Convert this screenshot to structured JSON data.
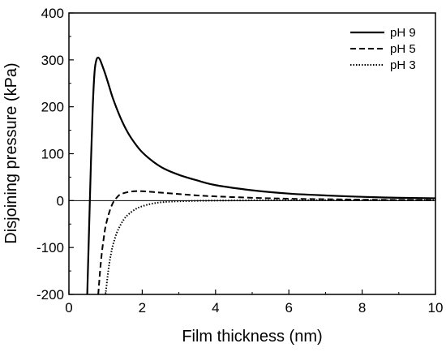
{
  "chart_data": {
    "type": "line",
    "title": "",
    "xlabel": "Film thickness (nm)",
    "ylabel": "Disjoining pressure (kPa)",
    "xlim": [
      0,
      10
    ],
    "ylim": [
      -200,
      400
    ],
    "xticks": [
      0,
      2,
      4,
      6,
      8,
      10
    ],
    "yticks": [
      -200,
      -100,
      0,
      100,
      200,
      300,
      400
    ],
    "xtick_labels": [
      "0",
      "2",
      "4",
      "6",
      "8",
      "10"
    ],
    "ytick_labels": [
      "-200",
      "-100",
      "0",
      "100",
      "200",
      "300",
      "400"
    ],
    "grid": false,
    "zero_line": true,
    "legend_position": "top-right",
    "series": [
      {
        "name": "pH 9",
        "style": "solid",
        "color": "#000000",
        "x": [
          0.5,
          0.55,
          0.6,
          0.65,
          0.7,
          0.75,
          0.8,
          0.85,
          0.9,
          1.0,
          1.1,
          1.2,
          1.4,
          1.6,
          1.8,
          2.0,
          2.3,
          2.6,
          3.0,
          3.5,
          4.0,
          5.0,
          6.0,
          7.0,
          8.0,
          9.0,
          10.0
        ],
        "y": [
          -200,
          -60,
          80,
          200,
          275,
          300,
          305,
          300,
          290,
          268,
          243,
          218,
          178,
          146,
          122,
          103,
          83,
          68,
          55,
          43,
          33,
          22,
          15,
          11,
          8,
          6,
          5
        ]
      },
      {
        "name": "pH 5",
        "style": "dashed",
        "color": "#000000",
        "x": [
          0.8,
          0.85,
          0.9,
          0.95,
          1.0,
          1.1,
          1.2,
          1.3,
          1.4,
          1.6,
          1.8,
          2.0,
          2.2,
          2.5,
          3.0,
          3.5,
          4.0,
          5.0,
          6.0,
          7.0,
          8.0,
          9.0,
          10.0
        ],
        "y": [
          -200,
          -150,
          -110,
          -80,
          -55,
          -25,
          -5,
          6,
          13,
          18,
          20,
          20,
          19,
          17,
          14,
          11,
          9,
          6,
          4,
          3,
          2,
          1.5,
          1
        ]
      },
      {
        "name": "pH 3",
        "style": "dotted",
        "color": "#000000",
        "x": [
          1.0,
          1.05,
          1.1,
          1.15,
          1.2,
          1.3,
          1.4,
          1.5,
          1.6,
          1.8,
          2.0,
          2.3,
          2.6,
          3.0,
          3.5,
          4.0,
          5.0,
          6.0,
          7.0,
          8.0,
          9.0,
          10.0
        ],
        "y": [
          -200,
          -165,
          -135,
          -113,
          -95,
          -70,
          -53,
          -40,
          -31,
          -19,
          -12,
          -6,
          -3,
          -1.5,
          -0.5,
          0,
          0.5,
          0.8,
          1,
          1,
          1,
          1
        ]
      }
    ]
  }
}
